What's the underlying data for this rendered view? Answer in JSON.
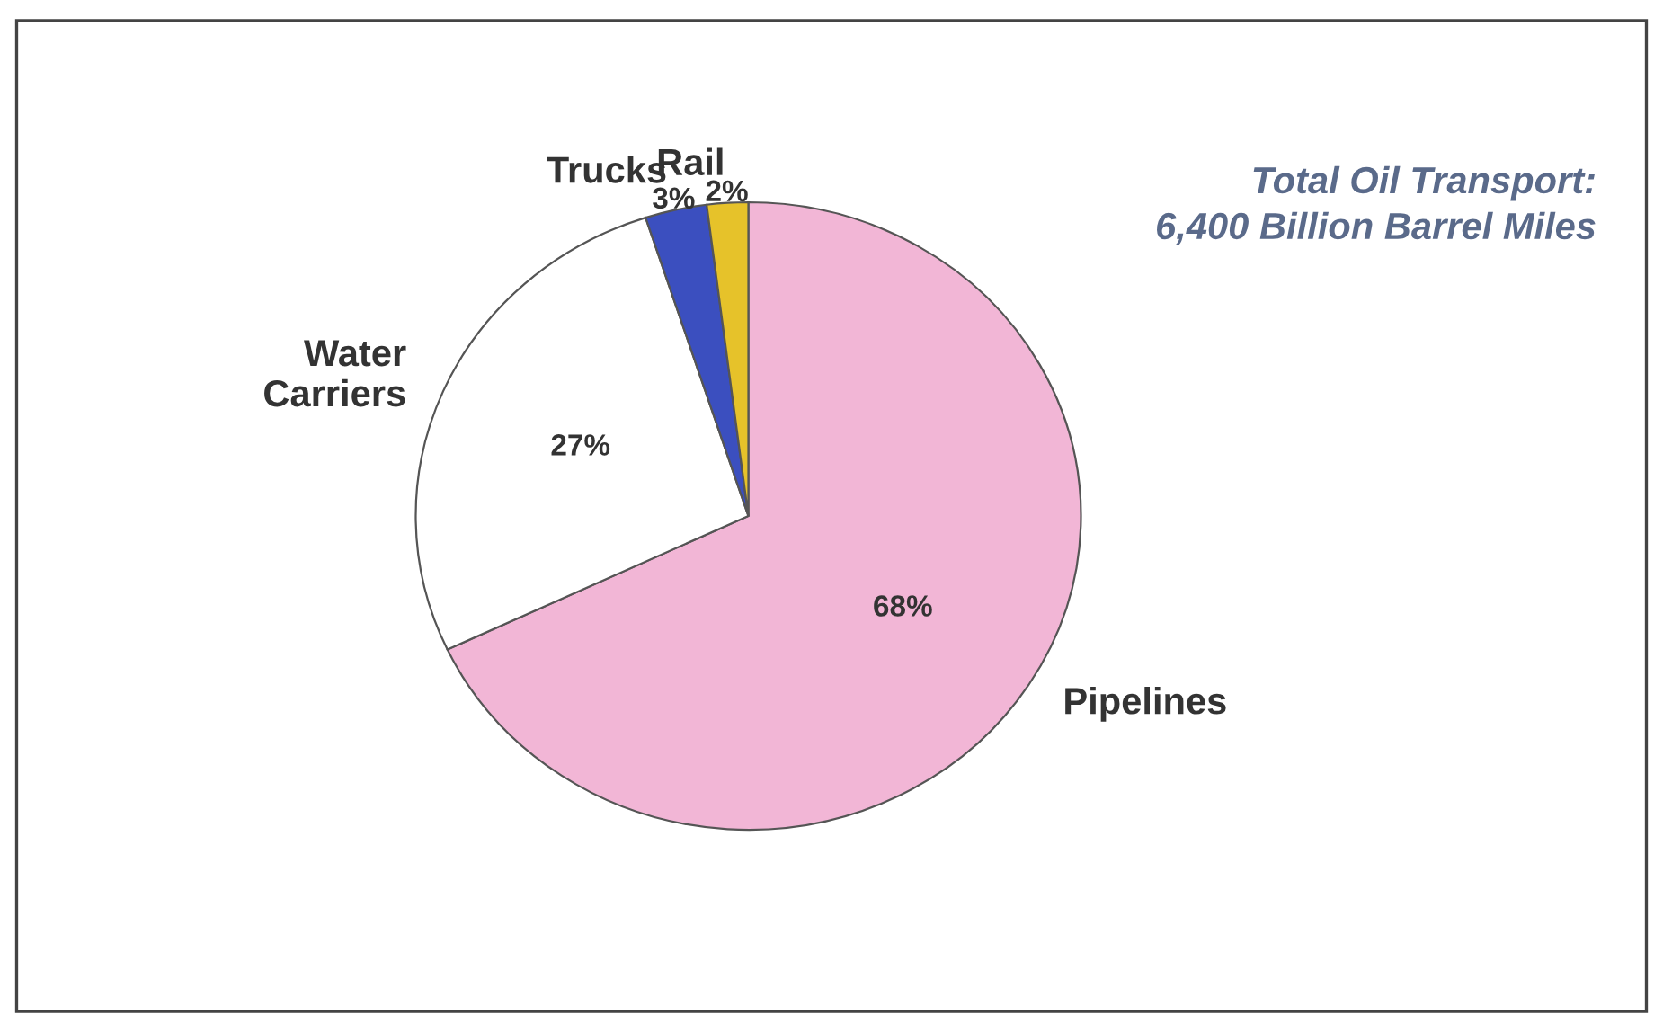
{
  "chart_data": {
    "type": "pie",
    "categories": [
      "Pipelines",
      "Water\nCarriers",
      "Trucks",
      "Rail"
    ],
    "values": [
      68,
      27,
      3,
      2
    ],
    "colors": [
      "#f2b6d6",
      "#ffffff",
      "#3b4fbf",
      "#e6c22a"
    ],
    "value_labels": [
      "68%",
      "27%",
      "3%",
      "2%"
    ],
    "annotations": [
      "Total Oil Transport:\n6,400 Billion Barrel Miles"
    ]
  }
}
